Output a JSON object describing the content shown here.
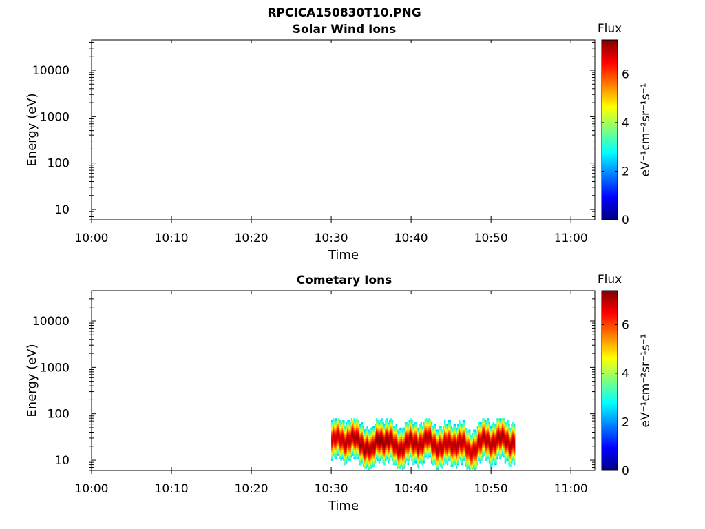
{
  "figure_title": "RPCICA150830T10.PNG",
  "colors": {
    "colormap": [
      "#00007f",
      "#0000ff",
      "#007fff",
      "#00ffff",
      "#7fff7f",
      "#ffff00",
      "#ff7f00",
      "#ff0000",
      "#7f0000"
    ],
    "axes": "#000000",
    "background": "#ffffff"
  },
  "chart_data": [
    {
      "type": "heatmap",
      "title": "Solar Wind Ions",
      "xlabel": "Time",
      "ylabel": "Energy (eV)",
      "x_ticks": [
        "10:00",
        "10:10",
        "10:20",
        "10:30",
        "10:40",
        "10:50",
        "11:00"
      ],
      "y_ticks": [
        "10",
        "100",
        "1000",
        "10000"
      ],
      "y_scale": "log",
      "xlim": [
        "10:00",
        "11:03"
      ],
      "ylim": [
        6,
        45000
      ],
      "colorbar": {
        "label": "Flux",
        "units": "eV⁻¹cm⁻²sr⁻¹s⁻¹",
        "ticks": [
          "0",
          "2",
          "4",
          "6"
        ],
        "range": [
          0,
          7.4
        ]
      },
      "data": []
    },
    {
      "type": "heatmap",
      "title": "Cometary Ions",
      "xlabel": "Time",
      "ylabel": "Energy (eV)",
      "x_ticks": [
        "10:00",
        "10:10",
        "10:20",
        "10:30",
        "10:40",
        "10:50",
        "11:00"
      ],
      "y_ticks": [
        "10",
        "100",
        "1000",
        "10000"
      ],
      "y_scale": "log",
      "xlim": [
        "10:00",
        "11:03"
      ],
      "ylim": [
        6,
        45000
      ],
      "colorbar": {
        "label": "Flux",
        "units": "eV⁻¹cm⁻²sr⁻¹s⁻¹",
        "ticks": [
          "0",
          "2",
          "4",
          "6"
        ],
        "range": [
          0,
          7.4
        ]
      },
      "data_extent": {
        "time": [
          "10:30",
          "10:53"
        ],
        "energy_eV": [
          6,
          80
        ]
      },
      "data": [
        {
          "time": "10:30",
          "core_eV": 25,
          "peak_flux": 6.8
        },
        {
          "time": "10:32",
          "core_eV": 28,
          "peak_flux": 7.0
        },
        {
          "time": "10:34",
          "core_eV": 22,
          "peak_flux": 7.2
        },
        {
          "time": "10:35",
          "core_eV": 13,
          "peak_flux": 7.0
        },
        {
          "time": "10:36",
          "core_eV": 30,
          "peak_flux": 7.4
        },
        {
          "time": "10:38",
          "core_eV": 18,
          "peak_flux": 7.0
        },
        {
          "time": "10:40",
          "core_eV": 22,
          "peak_flux": 7.1
        },
        {
          "time": "10:42",
          "core_eV": 25,
          "peak_flux": 7.0
        },
        {
          "time": "10:44",
          "core_eV": 18,
          "peak_flux": 7.0
        },
        {
          "time": "10:46",
          "core_eV": 25,
          "peak_flux": 7.1
        },
        {
          "time": "10:47",
          "core_eV": 14,
          "peak_flux": 6.8
        },
        {
          "time": "10:49",
          "core_eV": 24,
          "peak_flux": 7.0
        },
        {
          "time": "10:51",
          "core_eV": 26,
          "peak_flux": 7.1
        },
        {
          "time": "10:53",
          "core_eV": 24,
          "peak_flux": 7.0
        }
      ]
    }
  ]
}
